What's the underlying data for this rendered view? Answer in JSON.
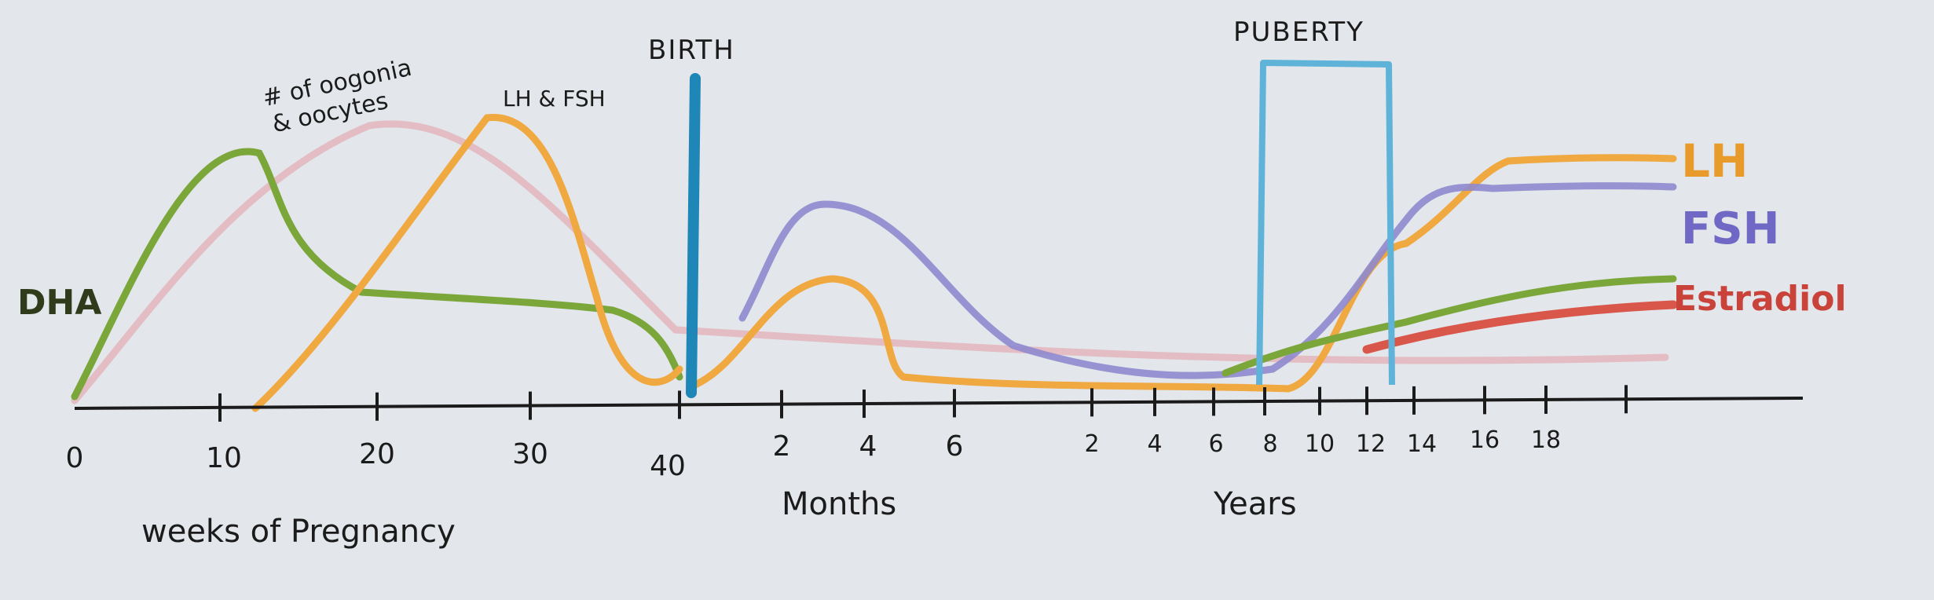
{
  "phase_labels": {
    "birth": "BIRTH",
    "puberty": "PUBERTY"
  },
  "curve_labels": {
    "dha": "DHA",
    "oogonia_line1": "# of oogonia",
    "oogonia_line2": "& oocytes",
    "lh_fsh": "LH & FSH",
    "lh": "LH",
    "fsh": "FSH",
    "estradiol": "Estradiol"
  },
  "axis": {
    "weeks_ticks": [
      "0",
      "10",
      "20",
      "30",
      "40"
    ],
    "months_ticks": [
      "2",
      "4",
      "6"
    ],
    "years_ticks": [
      "2",
      "4",
      "6",
      "8",
      "10",
      "12",
      "14",
      "16",
      "18"
    ],
    "weeks_label": "weeks of Pregnancy",
    "months_label": "Months",
    "years_label": "Years"
  },
  "colors": {
    "background": "#e3e6ea",
    "ink": "#1b1b1b",
    "dha": "#7aa63a",
    "oocytes": "#e2b8bf",
    "lh_fsh": "#f0a840",
    "fsh": "#8e88cf",
    "estradiol": "#d9564a",
    "birth_bar": "#1f86b8",
    "puberty_box": "#5fb3d9"
  }
}
